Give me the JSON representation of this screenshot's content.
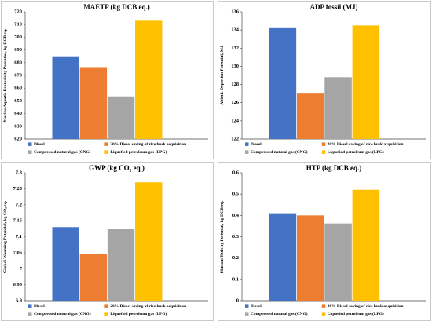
{
  "colors": {
    "Diesel": "#4472c4",
    "20% Diesel saving of rice husk acquisition": "#ed7d31",
    "Compressed natural gas (CNG)": "#a5a5a5",
    "Liquefied petroleum gas (LPG)": "#ffc000"
  },
  "chart_data": [
    {
      "type": "bar",
      "title": "MAETP (kg DCB eq.)",
      "ylabel": "Marine Aquatic Ecotoxicity Potential, kg DCB eq.",
      "categories": [
        "Diesel",
        "20% Diesel saving of rice husk acquisition",
        "Compressed natural gas (CNG)",
        "Liquefied petroleum gas (LPG)"
      ],
      "values": [
        685,
        676.5,
        653.5,
        713
      ],
      "ylim": [
        620,
        720
      ],
      "yticks": [
        620,
        630,
        640,
        650,
        660,
        670,
        680,
        690,
        700,
        710,
        720
      ],
      "grid": false,
      "legend": "bottom"
    },
    {
      "type": "bar",
      "title": "ADP fossil (MJ)",
      "ylabel": "Abiotic Depletion Potential, MJ",
      "categories": [
        "Diesel",
        "20% Diesel saving of rice husk acquisition",
        "Compressed natural gas (CNG)",
        "Liquefied petroleum gas (LPG)"
      ],
      "values": [
        134.2,
        127,
        128.8,
        134.5
      ],
      "ylim": [
        122,
        136
      ],
      "yticks": [
        122,
        124,
        126,
        128,
        130,
        132,
        134,
        136
      ],
      "grid": false,
      "legend": "bottom"
    },
    {
      "type": "bar",
      "title": "GWP (kg CO₂ eq.)",
      "ylabel": "Global Warming Potential, kg CO₂ eq.",
      "categories": [
        "Diesel",
        "20% Diesel saving of rice husk acquisition",
        "Compressed natural gas (CNG)",
        "Liquefied petroleum gas (LPG)"
      ],
      "values": [
        7.13,
        7.045,
        7.125,
        7.27
      ],
      "ylim": [
        6.9,
        7.3
      ],
      "yticks": [
        6.9,
        6.95,
        7,
        7.05,
        7.1,
        7.15,
        7.2,
        7.25,
        7.3
      ],
      "grid": false,
      "legend": "bottom"
    },
    {
      "type": "bar",
      "title": "HTP (kg DCB eq.)",
      "ylabel": "Human Toxicity Potential, kg DCB eq.",
      "categories": [
        "Diesel",
        "20% Diesel saving of rice husk acquisition",
        "Compressed natural gas (CNG)",
        "Liquefied petroleum gas (LPG)"
      ],
      "values": [
        0.41,
        0.4,
        0.362,
        0.52
      ],
      "ylim": [
        0,
        0.6
      ],
      "yticks": [
        0,
        0.1,
        0.2,
        0.3,
        0.4,
        0.5,
        0.6
      ],
      "grid": false,
      "legend": "bottom"
    }
  ]
}
